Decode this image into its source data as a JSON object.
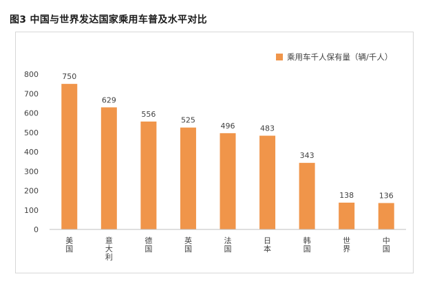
{
  "figure_title": "图3 中国与世界发达国家乘用车普及水平对比",
  "colors": {
    "bar": "#f0954a",
    "axis": "#bfbfbf",
    "text": "#404040"
  },
  "chart_data": {
    "type": "bar",
    "title": "",
    "xlabel": "",
    "ylabel": "",
    "ylim": [
      0,
      800
    ],
    "yticks": [
      0,
      100,
      200,
      300,
      400,
      500,
      600,
      700,
      800
    ],
    "grid": false,
    "legend_position": "top-right",
    "categories": [
      "美国",
      "意大利",
      "德国",
      "英国",
      "法国",
      "日本",
      "韩国",
      "世界",
      "中国"
    ],
    "series": [
      {
        "name": "乘用车千人保有量（辆/千人）",
        "values": [
          750,
          629,
          556,
          525,
          496,
          483,
          343,
          138,
          136
        ]
      }
    ]
  }
}
